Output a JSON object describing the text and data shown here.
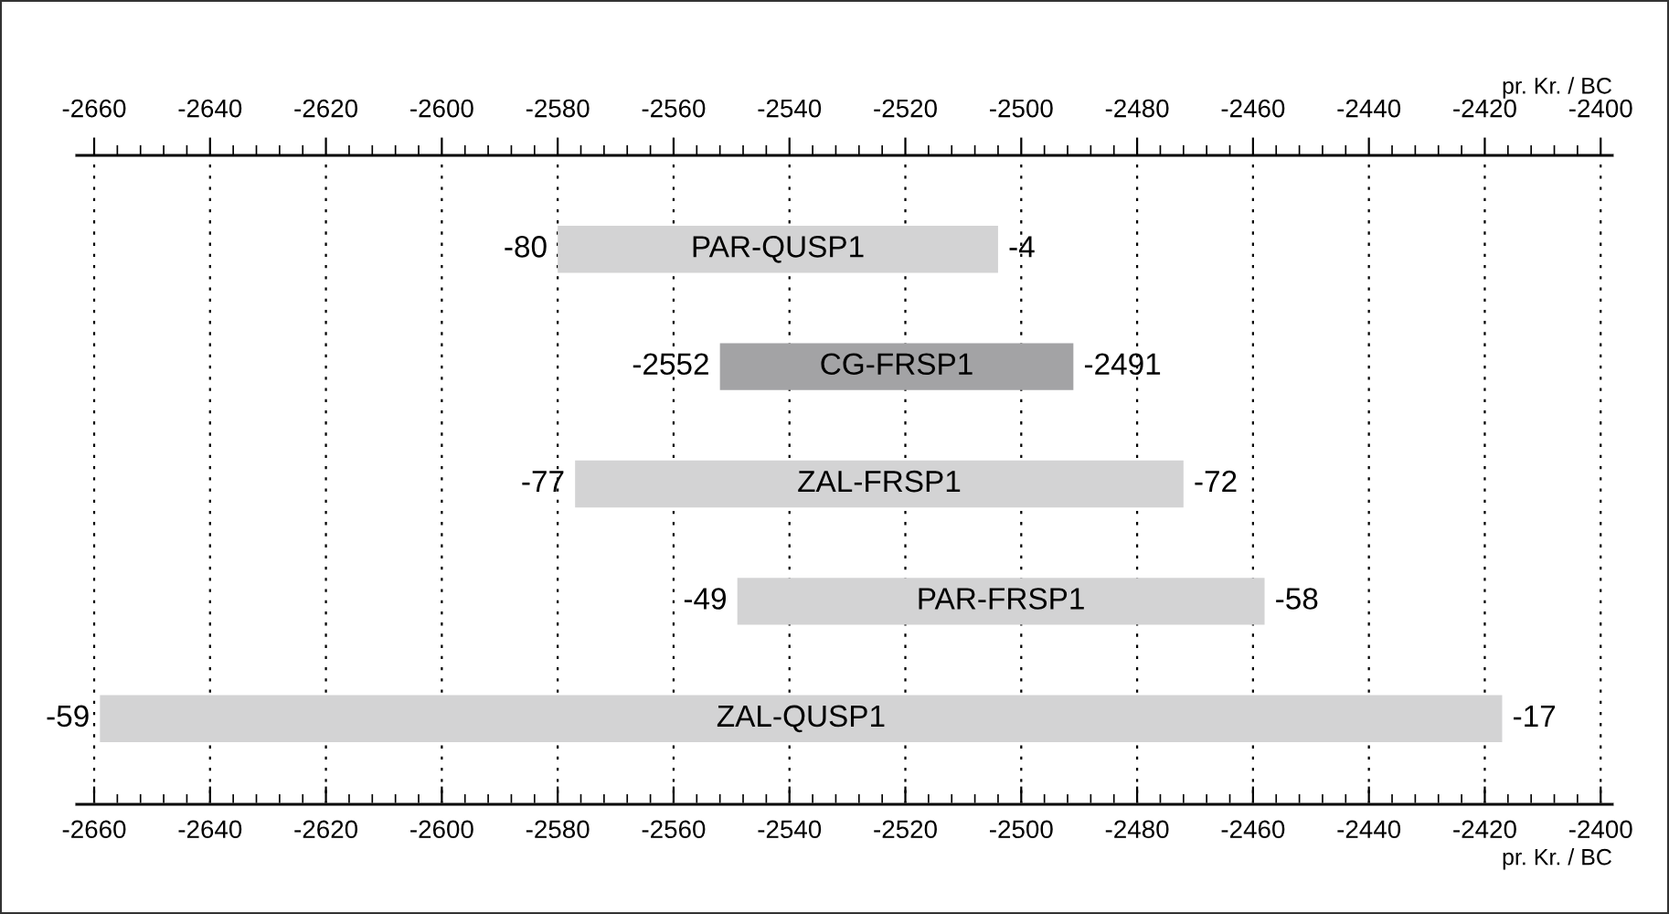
{
  "chart_data": {
    "type": "bar",
    "orientation": "horizontal",
    "xlabel": "pr. Kr. / BC",
    "x2label": "pr. Kr. / BC",
    "categories": [
      "PAR-QUSP1",
      "CG-FRSP1",
      "ZAL-FRSP1",
      "PAR-FRSP1",
      "ZAL-QUSP1"
    ],
    "base": [
      -2580,
      -2552,
      -2577,
      -2549,
      -2659
    ],
    "values": [
      76,
      61,
      105,
      91,
      242
    ],
    "colors": [
      "#d3d3d4",
      "#a3a3a5",
      "#d3d3d4",
      "#d3d3d4",
      "#d3d3d4"
    ],
    "xlim": [
      -2663,
      -2398
    ],
    "xticks": [
      -2660,
      -2640,
      -2620,
      -2600,
      -2580,
      -2560,
      -2540,
      -2520,
      -2500,
      -2480,
      -2460,
      -2440,
      -2420,
      -2400
    ],
    "x2lim": [
      -2663,
      -2398
    ],
    "x2ticks": [
      -2660,
      -2640,
      -2620,
      -2600,
      -2580,
      -2560,
      -2540,
      -2520,
      -2500,
      -2480,
      -2460,
      -2440,
      -2420,
      -2400
    ],
    "grid": "x",
    "annotations": [
      {
        "text": "-80",
        "x": -2580,
        "y": "PAR-QUSP1"
      },
      {
        "text": "-4",
        "x": -2504,
        "y": "PAR-QUSP1"
      },
      {
        "text": "-2552",
        "x": -2552,
        "y": "CG-FRSP1"
      },
      {
        "text": "-2491",
        "x": -2491,
        "y": "CG-FRSP1"
      },
      {
        "text": "-77",
        "x": -2577,
        "y": "ZAL-FRSP1"
      },
      {
        "text": "-72",
        "x": -2472,
        "y": "ZAL-FRSP1"
      },
      {
        "text": "-49",
        "x": -2549,
        "y": "PAR-FRSP1"
      },
      {
        "text": "-58",
        "x": -2458,
        "y": "PAR-FRSP1"
      },
      {
        "text": "-59",
        "x": -2659,
        "y": "ZAL-QUSP1"
      },
      {
        "text": "-17",
        "x": -2417,
        "y": "ZAL-QUSP1"
      }
    ]
  }
}
